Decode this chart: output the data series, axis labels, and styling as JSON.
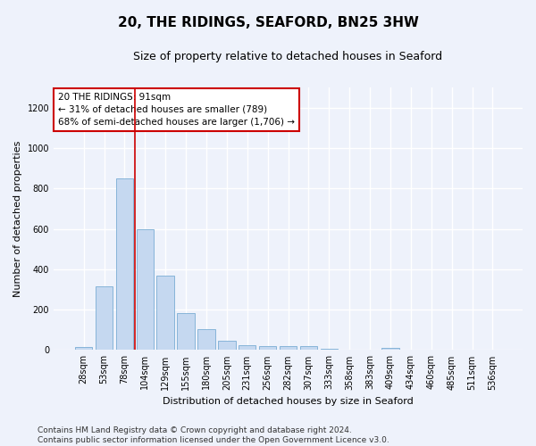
{
  "title": "20, THE RIDINGS, SEAFORD, BN25 3HW",
  "subtitle": "Size of property relative to detached houses in Seaford",
  "xlabel": "Distribution of detached houses by size in Seaford",
  "ylabel": "Number of detached properties",
  "categories": [
    "28sqm",
    "53sqm",
    "78sqm",
    "104sqm",
    "129sqm",
    "155sqm",
    "180sqm",
    "205sqm",
    "231sqm",
    "256sqm",
    "282sqm",
    "307sqm",
    "333sqm",
    "358sqm",
    "383sqm",
    "409sqm",
    "434sqm",
    "460sqm",
    "485sqm",
    "511sqm",
    "536sqm"
  ],
  "values": [
    15,
    315,
    850,
    600,
    370,
    185,
    105,
    47,
    22,
    18,
    18,
    18,
    5,
    0,
    0,
    12,
    0,
    0,
    0,
    0,
    0
  ],
  "bar_color": "#c5d8f0",
  "bar_edge_color": "#7aadd4",
  "vline_index": 2,
  "vline_color": "#cc0000",
  "annotation_text": "20 THE RIDINGS: 91sqm\n← 31% of detached houses are smaller (789)\n68% of semi-detached houses are larger (1,706) →",
  "annotation_box_color": "#cc0000",
  "ylim": [
    0,
    1300
  ],
  "yticks": [
    0,
    200,
    400,
    600,
    800,
    1000,
    1200
  ],
  "footer_line1": "Contains HM Land Registry data © Crown copyright and database right 2024.",
  "footer_line2": "Contains public sector information licensed under the Open Government Licence v3.0.",
  "background_color": "#eef2fb",
  "grid_color": "#ffffff",
  "title_fontsize": 11,
  "subtitle_fontsize": 9,
  "ylabel_fontsize": 8,
  "xlabel_fontsize": 8,
  "tick_fontsize": 7,
  "footer_fontsize": 6.5,
  "annotation_fontsize": 7.5
}
